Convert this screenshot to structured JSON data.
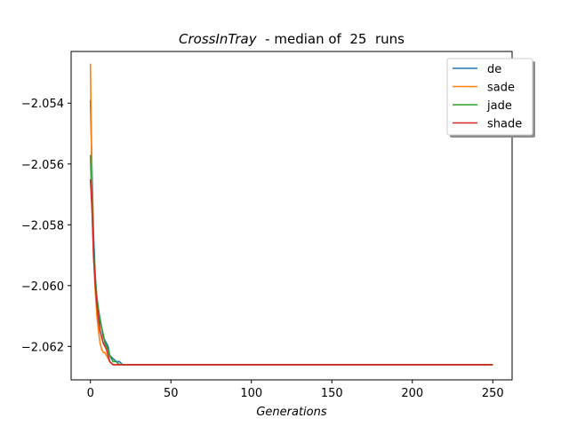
{
  "chart_data": {
    "type": "line",
    "title_italic": "CrossInTray",
    "title_rest": "  - median of  25  runs",
    "xlabel": "Generations",
    "ylabel": "",
    "xlim": [
      -12,
      262
    ],
    "ylim": [
      -2.0631,
      -2.0523
    ],
    "xticks": [
      0,
      50,
      100,
      150,
      200,
      250
    ],
    "yticks": [
      -2.062,
      -2.06,
      -2.058,
      -2.056,
      -2.054
    ],
    "ytick_labels": [
      "−2.062",
      "−2.060",
      "−2.058",
      "−2.056",
      "−2.054"
    ],
    "grid": false,
    "legend_position": "top-right",
    "series": [
      {
        "name": "de",
        "color": "#1f77b4",
        "x": [
          0,
          1,
          2,
          3,
          4,
          5,
          6,
          7,
          8,
          9,
          10,
          11,
          12,
          14,
          16,
          18,
          20,
          25,
          30,
          40,
          60,
          100,
          150,
          200,
          250
        ],
        "y": [
          -2.0539,
          -2.0562,
          -2.0584,
          -2.0597,
          -2.0604,
          -2.0608,
          -2.0611,
          -2.0614,
          -2.0617,
          -2.0618,
          -2.0619,
          -2.062,
          -2.0623,
          -2.0624,
          -2.0625,
          -2.0625,
          -2.0626,
          -2.0626,
          -2.0626,
          -2.0626,
          -2.0626,
          -2.0626,
          -2.0626,
          -2.0626,
          -2.0626
        ]
      },
      {
        "name": "sade",
        "color": "#ff7f0e",
        "x": [
          0,
          1,
          2,
          3,
          4,
          5,
          6,
          7,
          8,
          9,
          10,
          11,
          12,
          14,
          16,
          18,
          20,
          25,
          30,
          40,
          60,
          100,
          150,
          200,
          250
        ],
        "y": [
          -2.0527,
          -2.0568,
          -2.059,
          -2.0602,
          -2.061,
          -2.0615,
          -2.0619,
          -2.0621,
          -2.0622,
          -2.0622,
          -2.0623,
          -2.0624,
          -2.0625,
          -2.0626,
          -2.0626,
          -2.0626,
          -2.0626,
          -2.0626,
          -2.0626,
          -2.0626,
          -2.0626,
          -2.0626,
          -2.0626,
          -2.0626,
          -2.0626
        ]
      },
      {
        "name": "jade",
        "color": "#2ca02c",
        "x": [
          0,
          1,
          2,
          3,
          4,
          5,
          6,
          7,
          8,
          9,
          10,
          11,
          12,
          14,
          16,
          18,
          20,
          25,
          30,
          40,
          60,
          100,
          150,
          200,
          250
        ],
        "y": [
          -2.0557,
          -2.0574,
          -2.0588,
          -2.0598,
          -2.0604,
          -2.0608,
          -2.0612,
          -2.0614,
          -2.0616,
          -2.0619,
          -2.062,
          -2.0621,
          -2.0623,
          -2.0625,
          -2.0625,
          -2.0626,
          -2.0626,
          -2.0626,
          -2.0626,
          -2.0626,
          -2.0626,
          -2.0626,
          -2.0626,
          -2.0626,
          -2.0626
        ]
      },
      {
        "name": "shade",
        "color": "#d62728",
        "x": [
          0,
          1,
          2,
          3,
          4,
          5,
          6,
          7,
          8,
          9,
          10,
          11,
          12,
          14,
          16,
          18,
          20,
          25,
          30,
          40,
          60,
          100,
          150,
          200,
          250
        ],
        "y": [
          -2.0565,
          -2.0575,
          -2.0591,
          -2.06,
          -2.0606,
          -2.0611,
          -2.0615,
          -2.0617,
          -2.0619,
          -2.062,
          -2.0621,
          -2.0623,
          -2.0625,
          -2.0626,
          -2.0626,
          -2.0626,
          -2.0626,
          -2.0626,
          -2.0626,
          -2.0626,
          -2.0626,
          -2.0626,
          -2.0626,
          -2.0626,
          -2.0626
        ]
      }
    ]
  }
}
